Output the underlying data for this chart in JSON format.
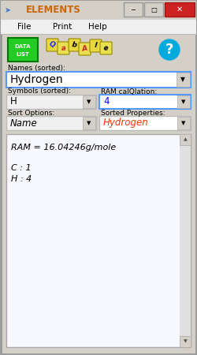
{
  "title": "ELEMENTS",
  "bg_color": "#c8c8c8",
  "window_bg": "#d4d0c8",
  "menu_items": [
    "File",
    "Print",
    "Help"
  ],
  "names_label": "Names (sorted):",
  "names_value": "Hydrogen",
  "symbols_label": "Symbols (sorted):",
  "symbols_value": "H",
  "ram_label": "RAM calQlation:",
  "ram_value": "4",
  "sort_label": "Sort Options:",
  "sort_value": "Name",
  "sorted_prop_label": "Sorted Properties:",
  "sorted_prop_value": "Hydrogen",
  "output_line1": "RAM = 16.04246g/mole",
  "output_line2": "C : 1",
  "output_line3": "H : 4",
  "data_list_color": "#22cc22",
  "help_color": "#00aadd",
  "close_btn_color": "#cc2222",
  "dropdown_bg": "#f0f0f0",
  "output_bg": "#f8f8ff",
  "blue_text": "#0000ff",
  "red_text": "#ff3300",
  "title_color": "#cc6600"
}
